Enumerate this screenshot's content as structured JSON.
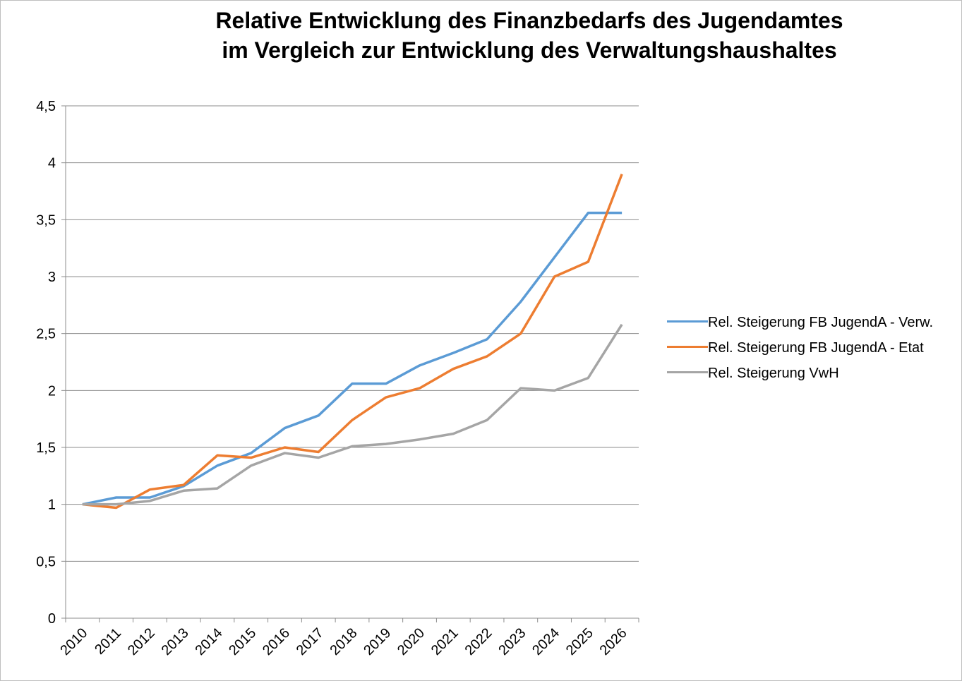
{
  "chart_data": {
    "type": "line",
    "title": [
      "Relative Entwicklung des Finanzbedarfs des Jugendamtes",
      "im Vergleich zur Entwicklung des Verwaltungshaushaltes"
    ],
    "categories": [
      "2010",
      "2011",
      "2012",
      "2013",
      "2014",
      "2015",
      "2016",
      "2017",
      "2018",
      "2019",
      "2020",
      "2021",
      "2022",
      "2023",
      "2024",
      "2025",
      "2026"
    ],
    "series": [
      {
        "name": "Rel. Steigerung FB JugendA - Verw.",
        "color": "#5b9bd5",
        "values": [
          1.0,
          1.06,
          1.06,
          1.16,
          1.34,
          1.45,
          1.67,
          1.78,
          2.06,
          2.06,
          2.22,
          2.33,
          2.45,
          2.78,
          3.17,
          3.56,
          3.56
        ]
      },
      {
        "name": "Rel. Steigerung FB JugendA - Etat",
        "color": "#ed7d31",
        "values": [
          1.0,
          0.97,
          1.13,
          1.17,
          1.43,
          1.41,
          1.5,
          1.46,
          1.74,
          1.94,
          2.02,
          2.19,
          2.3,
          2.5,
          3.0,
          3.13,
          3.9
        ]
      },
      {
        "name": "Rel. Steigerung VwH",
        "color": "#a5a5a5",
        "values": [
          1.0,
          1.0,
          1.03,
          1.12,
          1.14,
          1.34,
          1.45,
          1.41,
          1.51,
          1.53,
          1.57,
          1.62,
          1.74,
          2.02,
          2.0,
          2.11,
          2.58
        ]
      }
    ],
    "ylim": [
      0,
      4.5
    ],
    "yticks": [
      0,
      {
        "value": 0.5,
        "label": "0,5"
      },
      1,
      {
        "value": 1.5,
        "label": "1,5"
      },
      2,
      {
        "value": 2.5,
        "label": "2,5"
      },
      3,
      {
        "value": 3.5,
        "label": "3,5"
      },
      4,
      {
        "value": 4.5,
        "label": "4,5"
      }
    ],
    "grid": true,
    "legend": "right"
  }
}
